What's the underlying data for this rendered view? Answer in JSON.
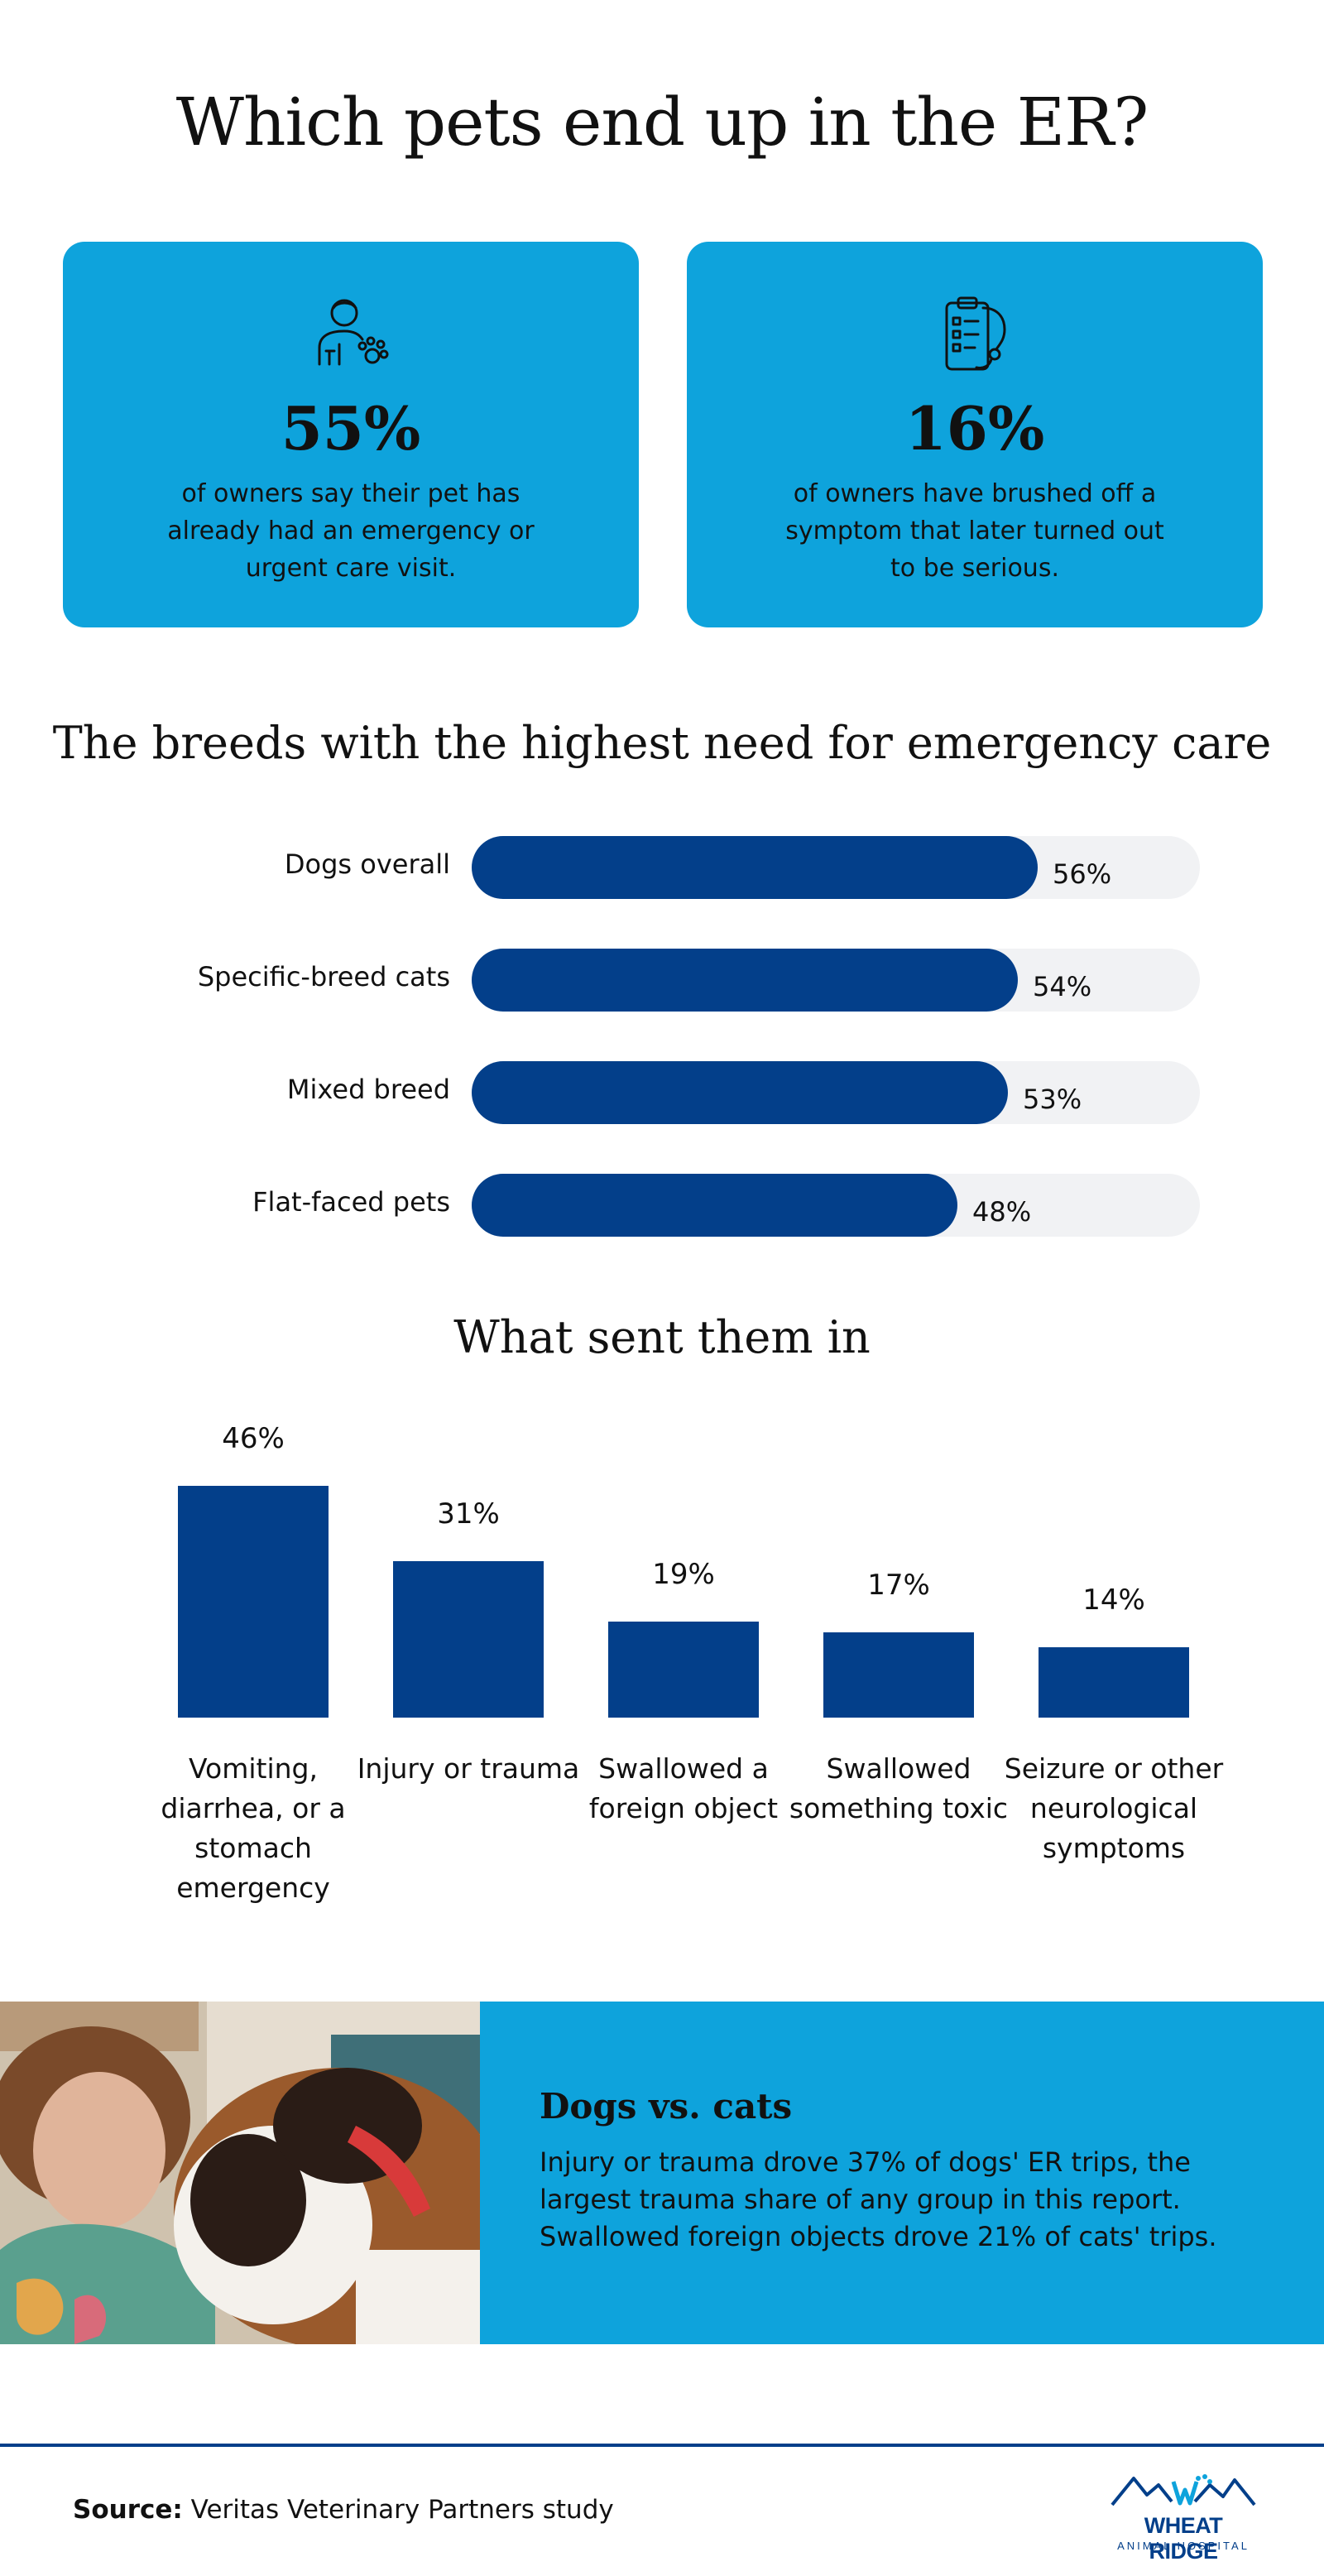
{
  "title": "Which pets end up in the ER?",
  "stats": [
    {
      "icon": "person-with-paw-icon",
      "value": "55%",
      "description": "of owners say their pet has already had an emergency or urgent care visit."
    },
    {
      "icon": "clipboard-stethoscope-icon",
      "value": "16%",
      "description": "of owners have brushed off a symptom that later turned out to be serious."
    }
  ],
  "colors": {
    "accent_blue": "#0ea3dc",
    "bar_navy": "#033f8a",
    "track_gray": "#f1f2f4"
  },
  "chart_data": [
    {
      "type": "bar",
      "orientation": "horizontal",
      "title": "The breeds with the highest need for emergency care",
      "categories": [
        "Dogs overall",
        "Specific-breed cats",
        "Mixed breed",
        "Flat-faced pets"
      ],
      "values": [
        56,
        54,
        53,
        48
      ],
      "value_labels": [
        "56%",
        "54%",
        "53%",
        "48%"
      ],
      "xlim": [
        0,
        72
      ],
      "grid": false
    },
    {
      "type": "bar",
      "orientation": "vertical",
      "title": "What sent them in",
      "categories": [
        "Vomiting, diarrhea, or a stomach emergency",
        "Injury or trauma",
        "Swallowed a foreign object",
        "Swallowed something toxic",
        "Seizure or other neurological symptoms"
      ],
      "values": [
        46,
        31,
        19,
        17,
        14
      ],
      "value_labels": [
        "46%",
        "31%",
        "19%",
        "17%",
        "14%"
      ],
      "ylim": [
        0,
        46
      ],
      "grid": false
    }
  ],
  "comparison": {
    "title": "Dogs vs. cats",
    "body": "Injury or trauma drove 37% of dogs' ER trips, the largest trauma share of any group in this report. Swallowed foreign objects drove 21% of cats' trips."
  },
  "footer": {
    "source_label": "Source:",
    "source_text": "Veritas Veterinary Partners study",
    "logo_name": "WHEAT RIDGE",
    "logo_sub": "ANIMAL HOSPITAL"
  }
}
